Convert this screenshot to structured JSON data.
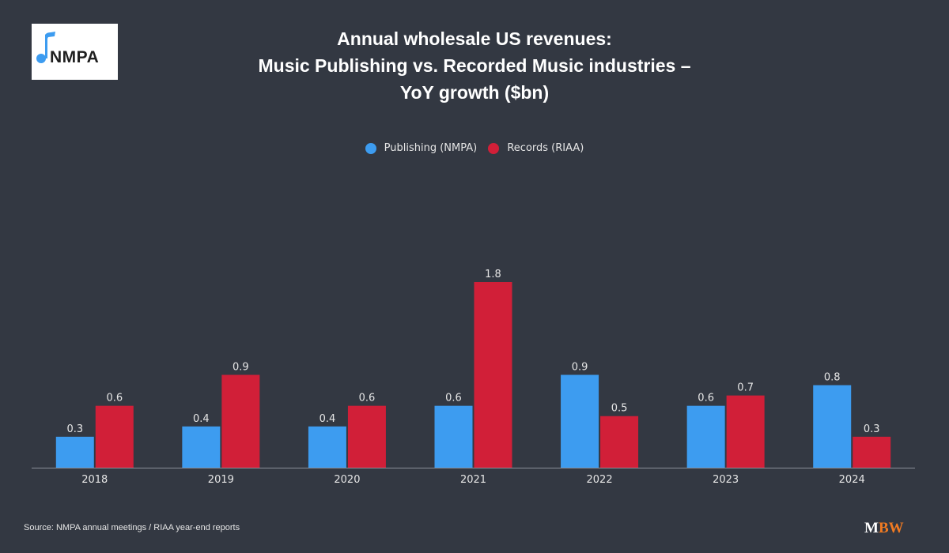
{
  "logo": {
    "text": "NMPA",
    "icon": "music-note-icon"
  },
  "title_lines": [
    "Annual wholesale US revenues:",
    "Music Publishing vs. Recorded Music industries –",
    "YoY growth ($bn)"
  ],
  "source": "Source: NMPA annual meetings / RIAA year-end reports",
  "brand": {
    "m": "M",
    "bw": "BW"
  },
  "chart_data": {
    "type": "bar",
    "title": "Annual wholesale US revenues: Music Publishing vs. Recorded Music industries – YoY growth ($bn)",
    "xlabel": "",
    "ylabel": "",
    "categories": [
      "2018",
      "2019",
      "2020",
      "2021",
      "2022",
      "2023",
      "2024"
    ],
    "series": [
      {
        "name": "Publishing (NMPA)",
        "color": "#3d9cf0",
        "values": [
          0.3,
          0.4,
          0.4,
          0.6,
          0.9,
          0.6,
          0.8
        ]
      },
      {
        "name": "Records (RIAA)",
        "color": "#d11f38",
        "values": [
          0.6,
          0.9,
          0.6,
          1.8,
          0.5,
          0.7,
          0.3
        ]
      }
    ],
    "ylim": [
      0,
      1.8
    ],
    "grid": false,
    "legend": "top-center",
    "data_labels": true
  }
}
